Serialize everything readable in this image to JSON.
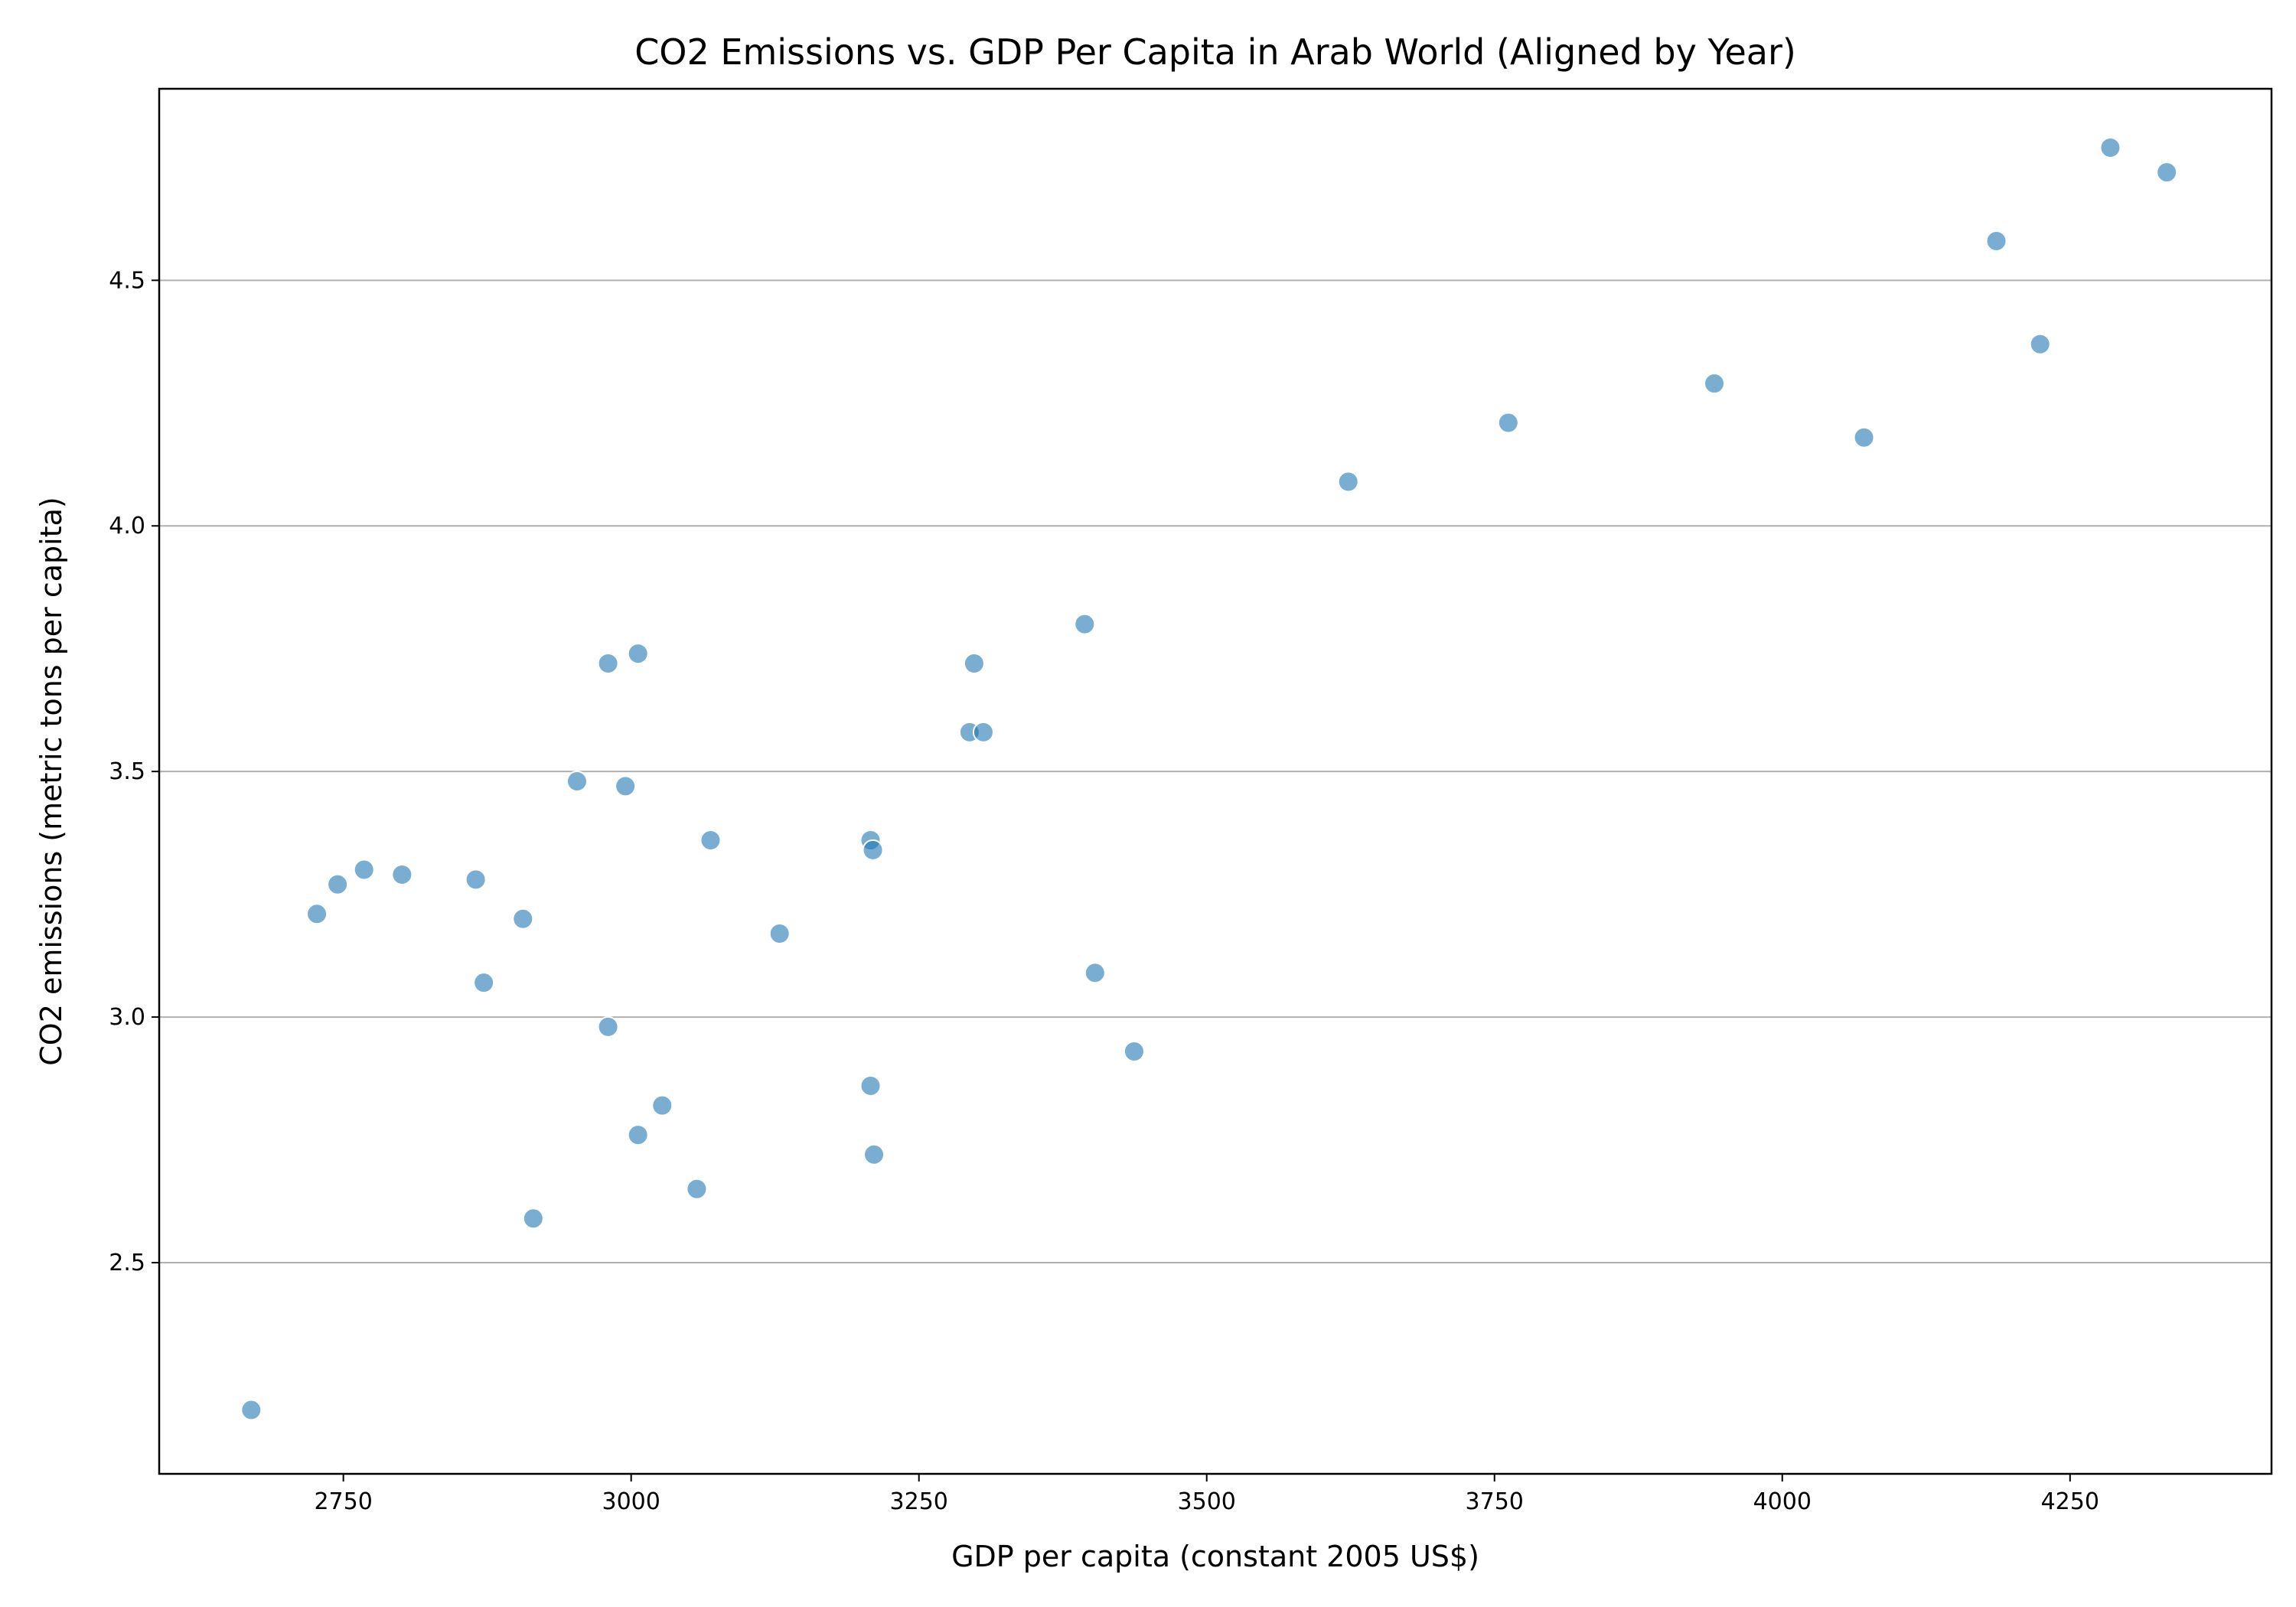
{
  "chart_data": {
    "type": "scatter",
    "title": "CO2 Emissions vs. GDP Per Capita in Arab World (Aligned by Year)",
    "xlabel": "GDP per capita (constant 2005 US$)",
    "ylabel": "CO2 emissions (metric tons per capita)",
    "xlim": [
      2590,
      4425
    ],
    "ylim": [
      2.07,
      4.89
    ],
    "x_ticks": [
      2750,
      3000,
      3250,
      3500,
      3750,
      4000,
      4250
    ],
    "y_ticks": [
      2.5,
      3.0,
      3.5,
      4.0,
      4.5
    ],
    "x_tick_labels": [
      "2750",
      "3000",
      "3250",
      "3500",
      "3750",
      "4000",
      "4250"
    ],
    "y_tick_labels": [
      "2.5",
      "3.0",
      "3.5",
      "4.0",
      "4.5"
    ],
    "grid": "y-axis horizontal lines",
    "marker_color": "#1f77b4",
    "marker_alpha": 0.6,
    "marker_edge_color": "#ffffff",
    "points": [
      {
        "x": 2670,
        "y": 2.2
      },
      {
        "x": 2727,
        "y": 3.21
      },
      {
        "x": 2745,
        "y": 3.27
      },
      {
        "x": 2768,
        "y": 3.3
      },
      {
        "x": 2801,
        "y": 3.29
      },
      {
        "x": 2865,
        "y": 3.28
      },
      {
        "x": 2872,
        "y": 3.07
      },
      {
        "x": 2906,
        "y": 3.2
      },
      {
        "x": 2915,
        "y": 2.59
      },
      {
        "x": 2953,
        "y": 3.48
      },
      {
        "x": 2980,
        "y": 3.72
      },
      {
        "x": 2980,
        "y": 2.98
      },
      {
        "x": 2995,
        "y": 3.47
      },
      {
        "x": 3006,
        "y": 3.74
      },
      {
        "x": 3006,
        "y": 2.76
      },
      {
        "x": 3027,
        "y": 2.82
      },
      {
        "x": 3057,
        "y": 2.65
      },
      {
        "x": 3069,
        "y": 3.36
      },
      {
        "x": 3129,
        "y": 3.17
      },
      {
        "x": 3208,
        "y": 3.36
      },
      {
        "x": 3210,
        "y": 3.34
      },
      {
        "x": 3208,
        "y": 2.86
      },
      {
        "x": 3211,
        "y": 2.72
      },
      {
        "x": 3294,
        "y": 3.58
      },
      {
        "x": 3298,
        "y": 3.72
      },
      {
        "x": 3306,
        "y": 3.58
      },
      {
        "x": 3394,
        "y": 3.8
      },
      {
        "x": 3403,
        "y": 3.09
      },
      {
        "x": 3437,
        "y": 2.93
      },
      {
        "x": 3623,
        "y": 4.09
      },
      {
        "x": 3762,
        "y": 4.21
      },
      {
        "x": 3941,
        "y": 4.29
      },
      {
        "x": 4071,
        "y": 4.18
      },
      {
        "x": 4186,
        "y": 4.58
      },
      {
        "x": 4224,
        "y": 4.37
      },
      {
        "x": 4285,
        "y": 4.77
      },
      {
        "x": 4334,
        "y": 4.72
      }
    ]
  }
}
